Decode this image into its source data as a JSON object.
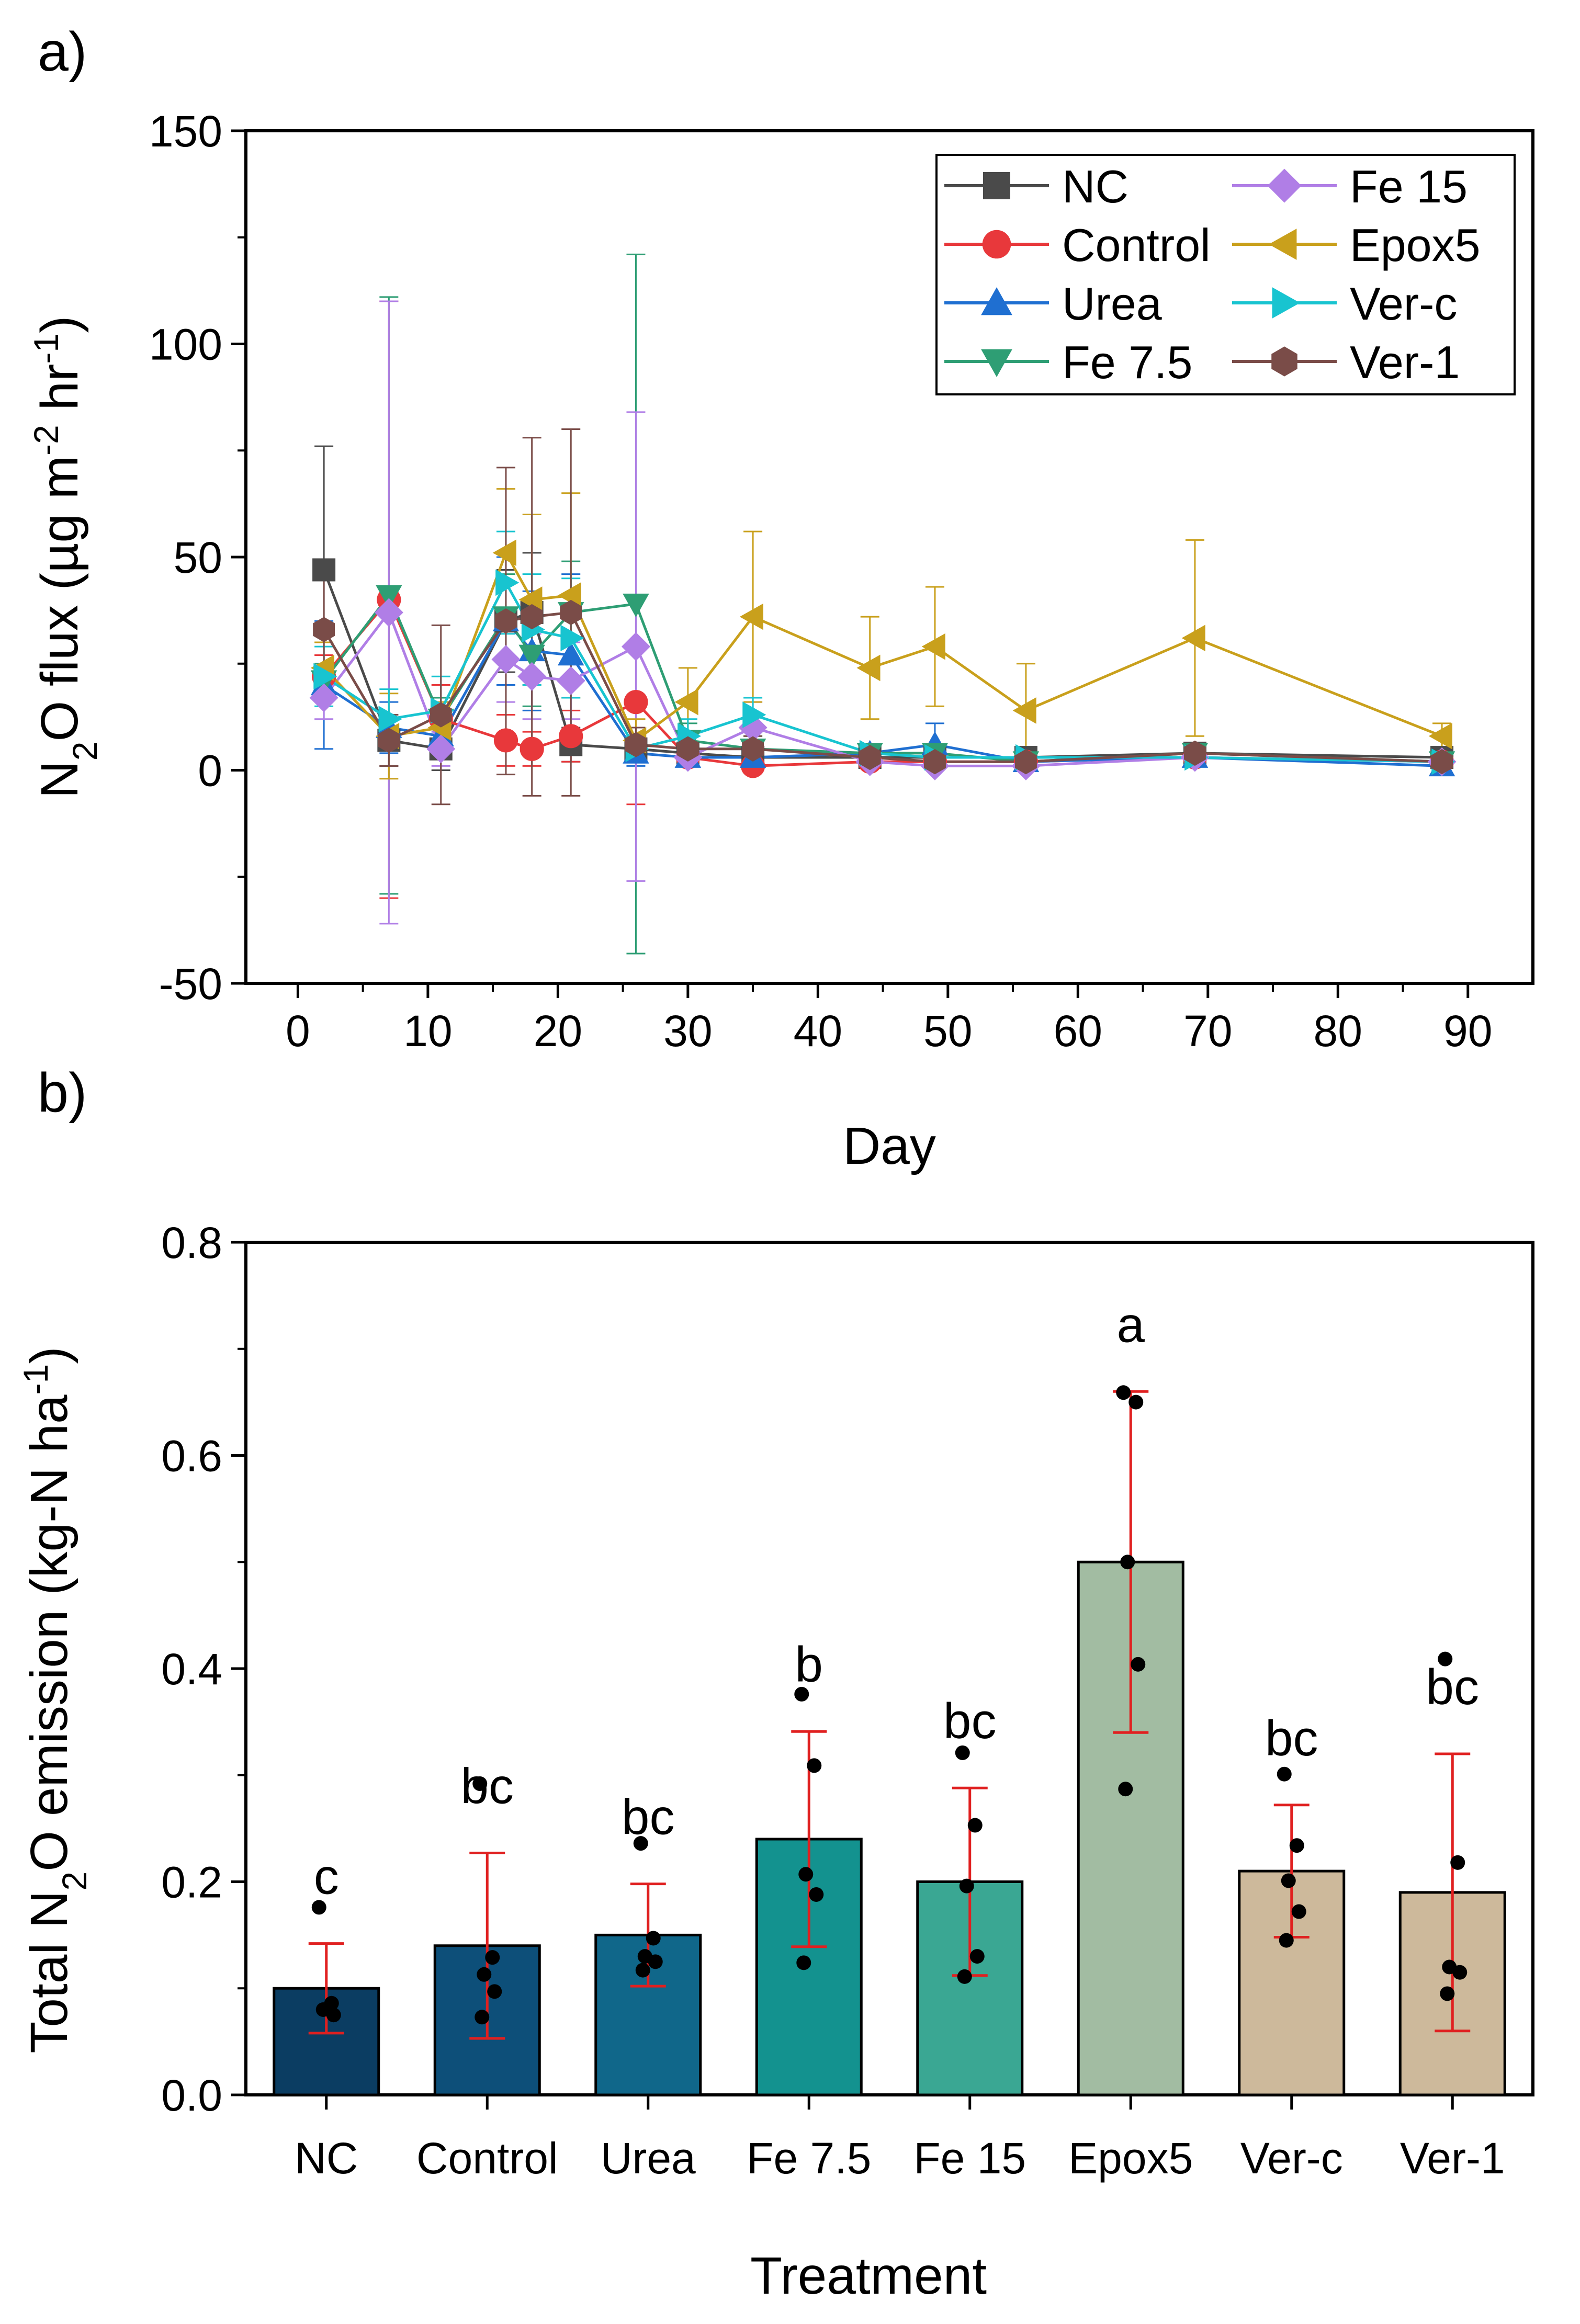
{
  "colors": {
    "NC": "#4a4a4a",
    "Control": "#e8383b",
    "Urea": "#1f6fd1",
    "Fe 7.5": "#2e9e74",
    "Fe 15": "#b07ee6",
    "Epox5": "#c9a01c",
    "Ver-c": "#18c4d0",
    "Ver-1": "#7a4c48",
    "error_b": "#e02020",
    "dot": "#000000"
  },
  "chart_data": [
    {
      "type": "line",
      "panel_label": "a)",
      "xlabel": "Day",
      "ylabel": "N2O flux (µg m-2 hr-1)",
      "ylabel_parts": [
        "N",
        "2",
        "O flux (µg m",
        "-2",
        " hr",
        "-1",
        ")"
      ],
      "xlim": [
        -4,
        95
      ],
      "ylim": [
        -50,
        150
      ],
      "xticks": [
        0,
        10,
        20,
        30,
        40,
        50,
        60,
        70,
        80,
        90
      ],
      "yticks": [
        -50,
        0,
        50,
        100,
        150
      ],
      "x_tick_labels": [
        "0",
        "10",
        "20",
        "30",
        "40",
        "50",
        "60",
        "70",
        "80",
        "90"
      ],
      "y_tick_labels": [
        "-50",
        "0",
        "50",
        "100",
        "150"
      ],
      "legend_position": "top-right",
      "legend_order": [
        "NC",
        "Fe 15",
        "Control",
        "Epox5",
        "Urea",
        "Ver-c",
        "Fe 7.5",
        "Ver-1"
      ],
      "x": [
        2,
        7,
        11,
        16,
        18,
        21,
        26,
        30,
        35,
        44,
        49,
        56,
        69,
        88
      ],
      "series": [
        {
          "name": "NC",
          "marker": "square",
          "values": [
            47,
            7,
            5,
            35,
            37,
            6,
            5,
            4,
            3,
            3,
            3,
            3,
            4,
            3
          ],
          "err": [
            29,
            6,
            5,
            12,
            14,
            4,
            3,
            2,
            2,
            1,
            1,
            1,
            1,
            1
          ]
        },
        {
          "name": "Control",
          "marker": "circle",
          "values": [
            22,
            40,
            12,
            7,
            5,
            8,
            16,
            3,
            1,
            2,
            2,
            2,
            3,
            2
          ],
          "err": [
            5,
            70,
            8,
            6,
            4,
            6,
            24,
            2,
            1,
            1,
            1,
            1,
            1,
            1
          ]
        },
        {
          "name": "Urea",
          "marker": "triangle-up",
          "values": [
            20,
            10,
            8,
            35,
            28,
            27,
            4,
            3,
            3,
            4,
            6,
            2,
            3,
            1
          ],
          "err": [
            15,
            6,
            5,
            15,
            14,
            19,
            3,
            2,
            2,
            2,
            5,
            1,
            1,
            1
          ]
        },
        {
          "name": "Fe 7.5",
          "marker": "triangle-down",
          "values": [
            21,
            41,
            12,
            36,
            27,
            37,
            39,
            7,
            5,
            4,
            4,
            2,
            4,
            2
          ],
          "err": [
            4,
            70,
            5,
            10,
            12,
            12,
            82,
            4,
            3,
            2,
            2,
            1,
            1,
            1
          ]
        },
        {
          "name": "Fe 15",
          "marker": "diamond",
          "values": [
            17,
            37,
            5,
            26,
            22,
            21,
            29,
            3,
            10,
            2,
            1,
            1,
            3,
            2
          ],
          "err": [
            5,
            73,
            4,
            10,
            10,
            9,
            55,
            2,
            6,
            1,
            1,
            1,
            1,
            1
          ]
        },
        {
          "name": "Epox5",
          "marker": "triangle-left",
          "values": [
            24,
            8,
            10,
            51,
            40,
            41,
            7,
            16,
            36,
            24,
            29,
            14,
            31,
            8
          ],
          "err": [
            6,
            10,
            6,
            15,
            20,
            24,
            5,
            8,
            20,
            12,
            14,
            11,
            23,
            3
          ]
        },
        {
          "name": "Ver-c",
          "marker": "triangle-right",
          "values": [
            22,
            12,
            14,
            44,
            33,
            31,
            5,
            8,
            13,
            4,
            3,
            3,
            3,
            2
          ],
          "err": [
            7,
            7,
            8,
            12,
            13,
            14,
            3,
            4,
            4,
            2,
            2,
            1,
            1,
            1
          ]
        },
        {
          "name": "Ver-1",
          "marker": "hexagon",
          "values": [
            33,
            7,
            13,
            35,
            36,
            37,
            6,
            5,
            5,
            3,
            2,
            2,
            4,
            2
          ],
          "err": [
            15,
            6,
            21,
            36,
            42,
            43,
            4,
            3,
            3,
            1,
            1,
            1,
            1,
            1
          ]
        }
      ]
    },
    {
      "type": "bar",
      "panel_label": "b)",
      "xlabel": "Treatment",
      "ylabel": "Total N2O emission (kg-N ha-1)",
      "ylabel_parts": [
        "Total N",
        "2",
        "O emission (kg-N ha",
        "-1",
        ")"
      ],
      "ylim": [
        0,
        0.8
      ],
      "yticks": [
        0,
        0.2,
        0.4,
        0.6,
        0.8
      ],
      "y_tick_labels": [
        "0.0",
        "0.2",
        "0.4",
        "0.6",
        "0.8"
      ],
      "categories": [
        "NC",
        "Control",
        "Urea",
        "Fe 7.5",
        "Fe 15",
        "Epox5",
        "Ver-c",
        "Ver-1"
      ],
      "values": [
        0.1,
        0.14,
        0.15,
        0.24,
        0.2,
        0.5,
        0.21,
        0.19
      ],
      "err": [
        0.042,
        0.087,
        0.048,
        0.101,
        0.088,
        0.16,
        0.062,
        0.13
      ],
      "letters": [
        "c",
        "bc",
        "bc",
        "b",
        "bc",
        "a",
        "bc",
        "bc"
      ],
      "bar_colors": [
        "#0b3d62",
        "#0d4f79",
        "#10678a",
        "#13928f",
        "#3aa793",
        "#a2bca2",
        "#cdb99b",
        "#cdb99b"
      ],
      "points": [
        [
          0.176,
          0.086,
          0.08,
          0.075
        ],
        [
          0.292,
          0.129,
          0.113,
          0.097,
          0.073
        ],
        [
          0.236,
          0.147,
          0.13,
          0.125,
          0.117
        ],
        [
          0.376,
          0.309,
          0.207,
          0.188,
          0.124
        ],
        [
          0.321,
          0.253,
          0.196,
          0.13,
          0.111
        ],
        [
          0.659,
          0.65,
          0.5,
          0.404,
          0.287
        ],
        [
          0.301,
          0.234,
          0.201,
          0.172,
          0.145
        ],
        [
          0.409,
          0.218,
          0.12,
          0.115,
          0.095
        ]
      ]
    }
  ]
}
